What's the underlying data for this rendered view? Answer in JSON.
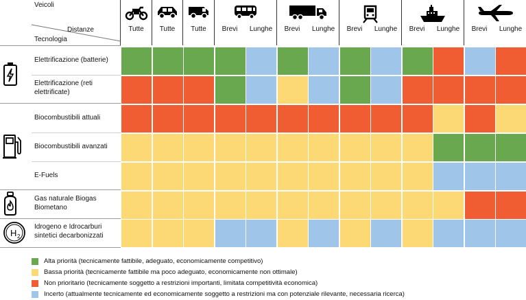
{
  "header": {
    "veicoli_label": "Veicoli",
    "distanze_label": "Distanze",
    "tecnologia_label": "Tecnologia"
  },
  "vehicles": [
    {
      "icon": "motorcycle-icon",
      "columns": [
        "Tutte"
      ]
    },
    {
      "icon": "car-icon",
      "columns": [
        "Tutte"
      ]
    },
    {
      "icon": "van-icon",
      "columns": [
        "Tutte"
      ]
    },
    {
      "icon": "bus-icon",
      "columns": [
        "Brevi",
        "Lunghe"
      ]
    },
    {
      "icon": "truck-icon",
      "columns": [
        "Brevi",
        "Lunghe"
      ]
    },
    {
      "icon": "train-icon",
      "columns": [
        "Brevi",
        "Lunghe"
      ]
    },
    {
      "icon": "ship-icon",
      "columns": [
        "Brevi",
        "Lunghe"
      ]
    },
    {
      "icon": "airplane-icon",
      "columns": [
        "Brevi",
        "Lunghe"
      ]
    }
  ],
  "colors": {
    "green": "#6aa84f",
    "yellow": "#fcd975",
    "red": "#f05d32",
    "blue": "#9fc5e8"
  },
  "groups": [
    {
      "icon": "battery-icon",
      "rows": 2
    },
    {
      "icon": "fuel-pump-icon",
      "rows": 3
    },
    {
      "icon": "gas-cylinder-icon",
      "rows": 1
    },
    {
      "icon": "hydrogen-icon",
      "rows": 1
    }
  ],
  "rows": [
    {
      "label": "Elettrificazione (batterie)",
      "cells": [
        "green",
        "green",
        "green",
        "green",
        "blue",
        "green",
        "blue",
        "green",
        "blue",
        "green",
        "red",
        "blue",
        "red"
      ]
    },
    {
      "label": "Elettrificazione (reti elettrificate)",
      "cells": [
        "red",
        "red",
        "red",
        "green",
        "blue",
        "yellow",
        "blue",
        "green",
        "blue",
        "red",
        "red",
        "red",
        "red"
      ]
    },
    {
      "label": "Biocombustibili attuali",
      "cells": [
        "red",
        "red",
        "red",
        "red",
        "red",
        "red",
        "red",
        "red",
        "red",
        "red",
        "yellow",
        "red",
        "yellow"
      ]
    },
    {
      "label": "Biocombustibili avanzati",
      "cells": [
        "yellow",
        "yellow",
        "yellow",
        "yellow",
        "yellow",
        "yellow",
        "yellow",
        "yellow",
        "yellow",
        "yellow",
        "green",
        "green",
        "green"
      ]
    },
    {
      "label": "E-Fuels",
      "cells": [
        "yellow",
        "yellow",
        "yellow",
        "yellow",
        "yellow",
        "yellow",
        "yellow",
        "yellow",
        "yellow",
        "yellow",
        "blue",
        "blue",
        "blue"
      ]
    },
    {
      "label": "Gas naturale Biogas Biometano",
      "cells": [
        "yellow",
        "yellow",
        "yellow",
        "yellow",
        "yellow",
        "yellow",
        "yellow",
        "yellow",
        "yellow",
        "yellow",
        "yellow",
        "red",
        "red"
      ]
    },
    {
      "label": "Idrogeno e Idrocarburi sintetici decarbonizzati",
      "cells": [
        "yellow",
        "yellow",
        "yellow",
        "blue",
        "blue",
        "yellow",
        "blue",
        "yellow",
        "blue",
        "yellow",
        "blue",
        "blue",
        "blue"
      ]
    }
  ],
  "legend": [
    {
      "color": "green",
      "text": "Alta priorità (tecnicamente fattibile, adeguato, economicamente competitivo)"
    },
    {
      "color": "yellow",
      "text": "Bassa priorità (tecnicamente fattibile ma poco adeguato, economicamente non ottimale)"
    },
    {
      "color": "red",
      "text": "Non prioritario (tecnicamente soggetto a restrizioni importanti, limitata competitività economica)"
    },
    {
      "color": "blue",
      "text": "Incerto (attualmente tecnicamente ed economicamente soggetto a restrizioni ma con potenziale rilevante, necessaria ricerca)"
    }
  ]
}
